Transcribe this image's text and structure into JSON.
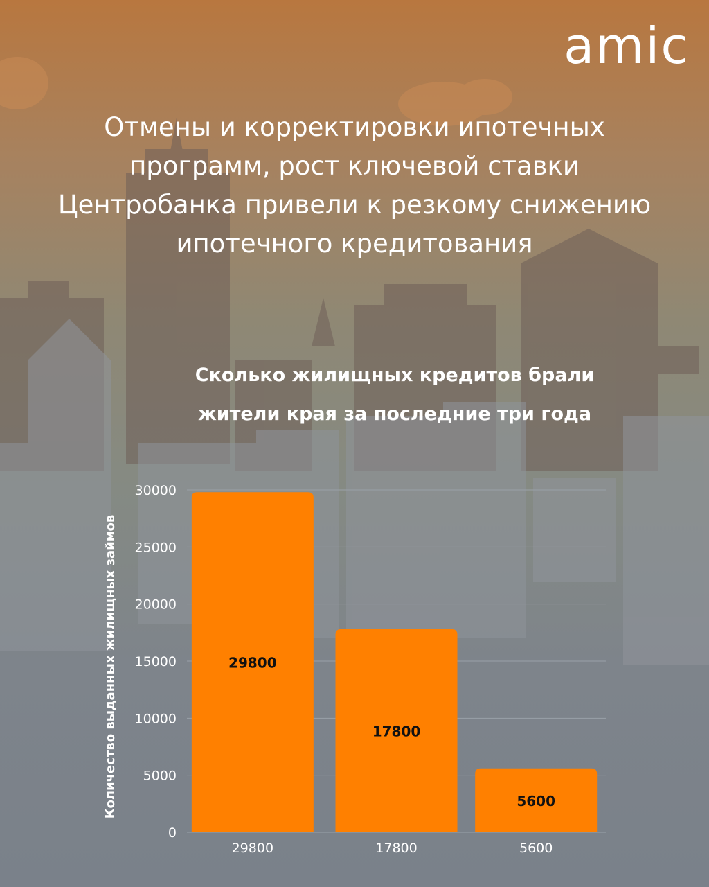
{
  "brand": {
    "logo_text": "amic",
    "color": "#ffffff"
  },
  "headline": "Отмены и корректировки ипотечных программ, рост ключевой ставки Центробанка привели к резкому снижению ипотечного кредитования",
  "colors": {
    "bar": "#ff8000",
    "grid": "#9aa1a9",
    "text": "#ffffff",
    "data_label": "#111111"
  },
  "chart_data": {
    "type": "bar",
    "title": "Сколько жилищных кредитов брали жители края за последние три года",
    "categories": [
      "29800",
      "17800",
      "5600"
    ],
    "values": [
      29800,
      17800,
      5600
    ],
    "data_labels": [
      "29800",
      "17800",
      "5600"
    ],
    "ylabel": "Количество выданных жилищных займов",
    "xlabel": "",
    "ylim": [
      0,
      30000
    ],
    "yticks": [
      0,
      5000,
      10000,
      15000,
      20000,
      25000,
      30000
    ],
    "ytick_labels": [
      "0",
      "5000",
      "10000",
      "15000",
      "20000",
      "25000",
      "30000"
    ],
    "grid": true,
    "legend": "none"
  }
}
